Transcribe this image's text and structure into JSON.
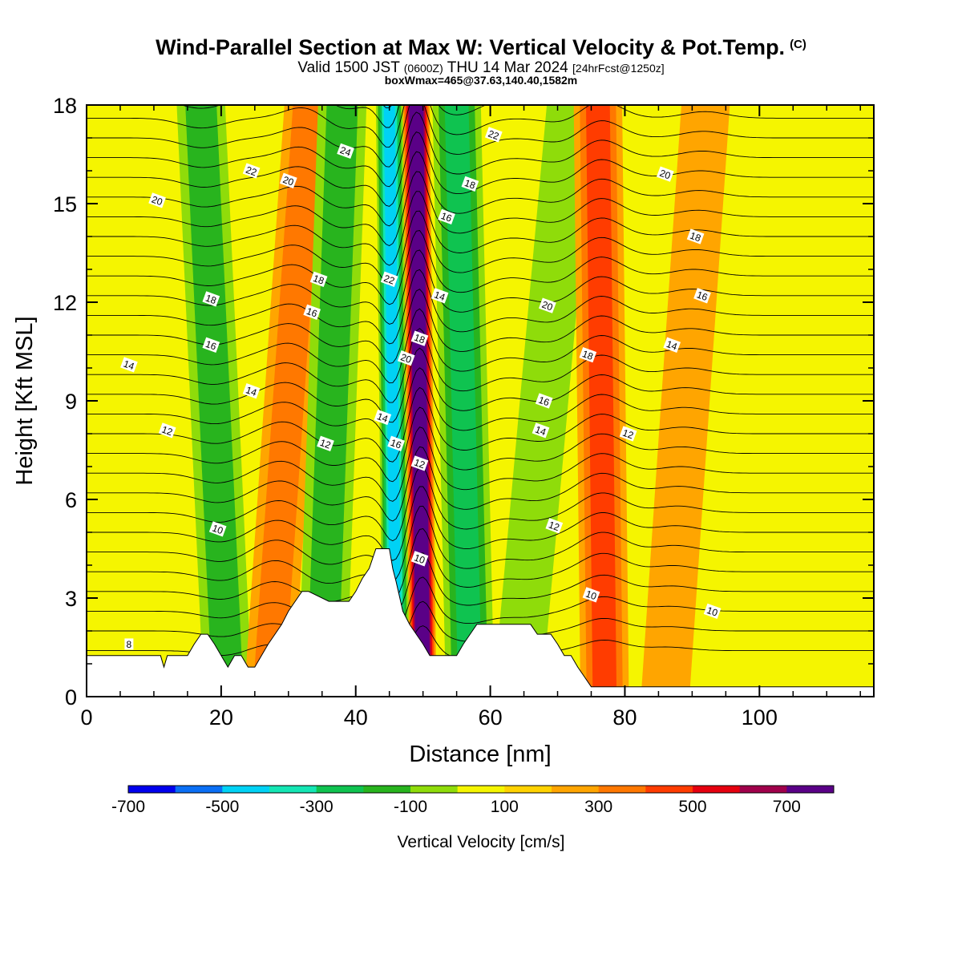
{
  "header": {
    "title": "Wind-Parallel Section at Max W: Vertical Velocity & Pot.Temp.",
    "copyright": "(C)",
    "valid_a": "Valid 1500 JST",
    "valid_b": "(0600Z)",
    "valid_c": "THU 14 Mar 2024",
    "valid_d": "[24hrFcst@1250z]",
    "boxline": "boxWmax=465@37.63,140.40,1582m"
  },
  "colorbar": {
    "label": "Vertical Velocity [cm/s]",
    "ticks": [
      "-700",
      "-500",
      "-300",
      "-100",
      "100",
      "300",
      "500",
      "700"
    ],
    "colors": [
      "#0000ee",
      "#0a6ff5",
      "#00d2f5",
      "#14e6b4",
      "#0fc350",
      "#28b41e",
      "#8fdc0a",
      "#f5f500",
      "#ffd200",
      "#ffa500",
      "#ff7800",
      "#ff3c00",
      "#e6000f",
      "#a0004b",
      "#5a0087"
    ]
  },
  "chart_data": {
    "type": "heatmap",
    "xlabel": "Distance [nm]",
    "ylabel": "Height [Kft MSL]",
    "xlim": [
      0,
      117
    ],
    "ylim": [
      0,
      18
    ],
    "x_ticks": [
      "0",
      "20",
      "40",
      "60",
      "80",
      "100"
    ],
    "y_ticks": [
      "0",
      "3",
      "6",
      "9",
      "12",
      "15",
      "18"
    ],
    "fill_variable": "Vertical Velocity [cm/s]",
    "fill_bands": [
      {
        "x_center": [
          21,
          17
        ],
        "w_cm_s": -150
      },
      {
        "x_center": [
          27,
          33
        ],
        "w_cm_s": 200
      },
      {
        "x_center": [
          35,
          38
        ],
        "w_cm_s": -200
      },
      {
        "x_center": [
          46,
          45
        ],
        "w_cm_s": -450
      },
      {
        "x_center": [
          50,
          49
        ],
        "w_cm_s": 750
      },
      {
        "x_center": [
          57,
          55
        ],
        "w_cm_s": -250
      },
      {
        "x_center": [
          64,
          72
        ],
        "w_cm_s": -120
      },
      {
        "x_center": [
          77,
          76
        ],
        "w_cm_s": 300
      },
      {
        "x_center": [
          86,
          92
        ],
        "w_cm_s": 100
      }
    ],
    "contour_variable": "potential temperature",
    "contour_levels": [
      8,
      10,
      12,
      14,
      16,
      18,
      20,
      22,
      24
    ],
    "contour_labels": [
      {
        "x": 6.3,
        "y": 10.1,
        "text": "14"
      },
      {
        "x": 10.5,
        "y": 15.1,
        "text": "20"
      },
      {
        "x": 12,
        "y": 8.1,
        "text": "12"
      },
      {
        "x": 6.3,
        "y": 1.6,
        "text": "8"
      },
      {
        "x": 19.5,
        "y": 5.1,
        "text": "10"
      },
      {
        "x": 18.5,
        "y": 12.1,
        "text": "18"
      },
      {
        "x": 18.5,
        "y": 10.7,
        "text": "16"
      },
      {
        "x": 24.5,
        "y": 9.3,
        "text": "14"
      },
      {
        "x": 24.5,
        "y": 16.0,
        "text": "22"
      },
      {
        "x": 30,
        "y": 15.7,
        "text": "20"
      },
      {
        "x": 38.5,
        "y": 16.6,
        "text": "24"
      },
      {
        "x": 34.5,
        "y": 12.7,
        "text": "18"
      },
      {
        "x": 33.5,
        "y": 11.7,
        "text": "16"
      },
      {
        "x": 35.5,
        "y": 7.7,
        "text": "12"
      },
      {
        "x": 45,
        "y": 12.7,
        "text": "22"
      },
      {
        "x": 47.5,
        "y": 10.3,
        "text": "20"
      },
      {
        "x": 49.5,
        "y": 10.9,
        "text": "18"
      },
      {
        "x": 44,
        "y": 8.5,
        "text": "14"
      },
      {
        "x": 46,
        "y": 7.7,
        "text": "16"
      },
      {
        "x": 49.5,
        "y": 7.1,
        "text": "12"
      },
      {
        "x": 49.5,
        "y": 4.2,
        "text": "10"
      },
      {
        "x": 52.5,
        "y": 12.2,
        "text": "14"
      },
      {
        "x": 53.5,
        "y": 14.6,
        "text": "16"
      },
      {
        "x": 57,
        "y": 15.6,
        "text": "18"
      },
      {
        "x": 60.5,
        "y": 17.1,
        "text": "22"
      },
      {
        "x": 68.5,
        "y": 11.9,
        "text": "20"
      },
      {
        "x": 68,
        "y": 9.0,
        "text": "16"
      },
      {
        "x": 67.5,
        "y": 8.1,
        "text": "14"
      },
      {
        "x": 69.5,
        "y": 5.2,
        "text": "12"
      },
      {
        "x": 75,
        "y": 3.1,
        "text": "10"
      },
      {
        "x": 74.5,
        "y": 10.4,
        "text": "18"
      },
      {
        "x": 80.5,
        "y": 8.0,
        "text": "12"
      },
      {
        "x": 87,
        "y": 10.7,
        "text": "14"
      },
      {
        "x": 91.5,
        "y": 12.2,
        "text": "16"
      },
      {
        "x": 90.5,
        "y": 14.0,
        "text": "18"
      },
      {
        "x": 86,
        "y": 15.9,
        "text": "20"
      },
      {
        "x": 93,
        "y": 2.6,
        "text": "10"
      }
    ],
    "terrain": {
      "x": [
        0,
        11,
        11.5,
        12,
        15,
        16,
        17,
        18,
        19,
        20,
        21,
        22,
        23,
        24,
        25,
        26,
        27,
        28,
        29,
        30,
        31,
        32,
        33,
        36,
        39,
        40,
        41,
        42,
        43,
        45,
        45.5,
        46,
        47,
        48,
        49,
        50,
        51,
        52,
        53,
        54,
        55,
        56,
        57,
        58,
        59,
        60,
        61,
        62,
        66,
        67,
        69,
        70,
        71,
        72,
        73,
        74,
        75,
        76,
        77,
        80,
        90,
        100,
        110,
        117
      ],
      "y_kft": [
        1.25,
        1.25,
        0.9,
        1.25,
        1.25,
        1.6,
        1.9,
        1.9,
        1.6,
        1.25,
        0.9,
        1.25,
        1.25,
        0.9,
        0.9,
        1.25,
        1.6,
        1.9,
        2.2,
        2.6,
        2.9,
        3.2,
        3.2,
        2.9,
        2.9,
        3.2,
        3.6,
        3.9,
        4.5,
        4.5,
        3.9,
        3.5,
        2.6,
        2.2,
        1.9,
        1.6,
        1.25,
        1.25,
        1.25,
        1.25,
        1.25,
        1.6,
        1.9,
        2.2,
        2.2,
        2.2,
        2.2,
        2.2,
        2.2,
        1.9,
        1.9,
        1.6,
        1.25,
        1.25,
        0.9,
        0.6,
        0.3,
        0.3,
        0.3,
        0.3,
        0.3,
        0.3,
        0.3,
        0.3
      ]
    }
  }
}
